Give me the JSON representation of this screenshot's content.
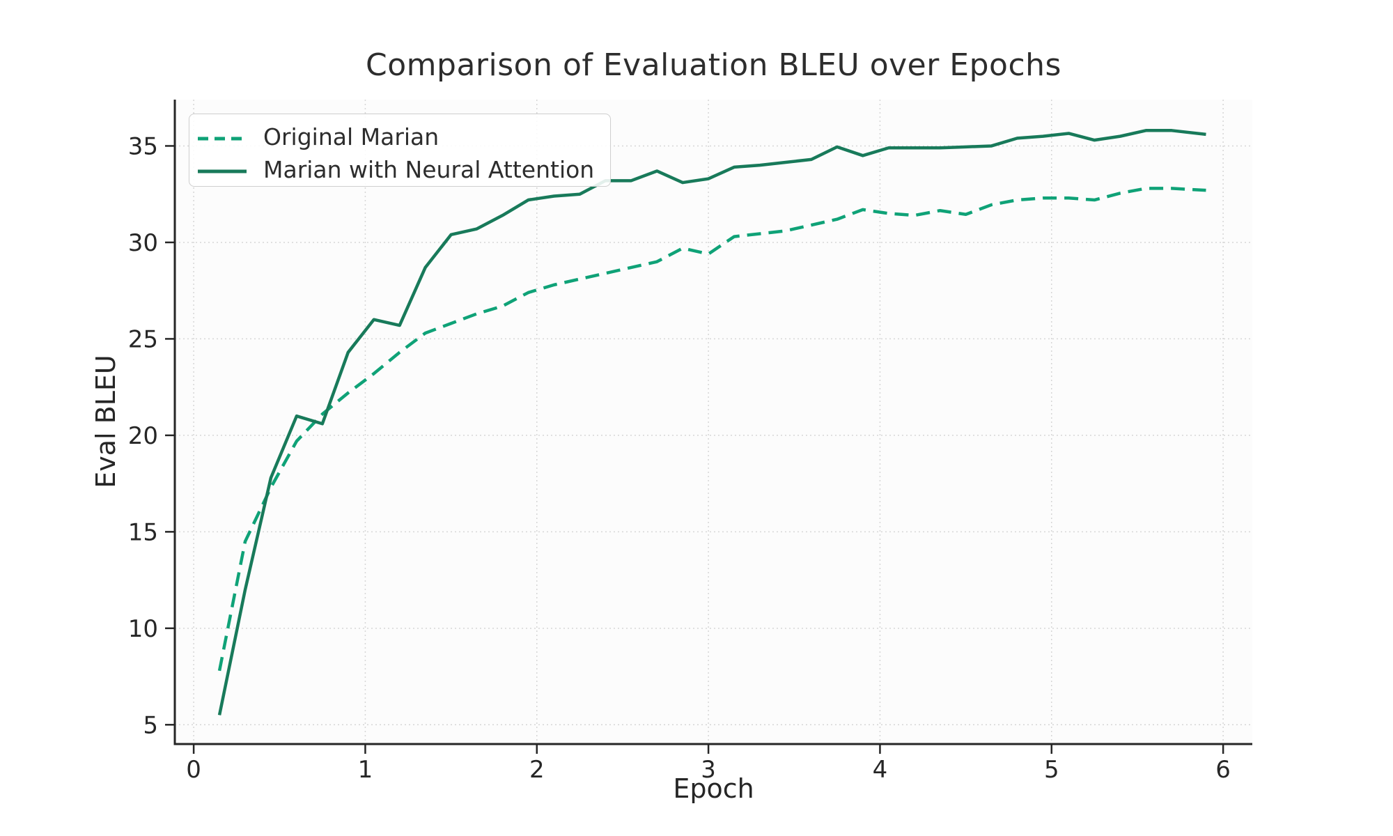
{
  "figure": {
    "background": "#ffffff",
    "plot_background": "#fcfcfc",
    "spine_color": "#262626",
    "grid_color": "#d6d6d6",
    "text_color": "#262626"
  },
  "chart_data": {
    "type": "line",
    "title": "Comparison of Evaluation BLEU over Epochs",
    "xlabel": "Epoch",
    "ylabel": "Eval BLEU",
    "xlim": [
      -0.11,
      6.17
    ],
    "ylim": [
      4.0,
      37.4
    ],
    "x_ticks": [
      0,
      1,
      2,
      3,
      4,
      5,
      6
    ],
    "y_ticks": [
      5,
      10,
      15,
      20,
      25,
      30,
      35
    ],
    "grid": true,
    "legend_position": "upper-left",
    "x": [
      0.15,
      0.3,
      0.45,
      0.6,
      0.75,
      0.9,
      1.05,
      1.2,
      1.35,
      1.5,
      1.65,
      1.8,
      1.95,
      2.1,
      2.25,
      2.4,
      2.55,
      2.7,
      2.85,
      3.0,
      3.15,
      3.3,
      3.45,
      3.6,
      3.75,
      3.9,
      4.05,
      4.2,
      4.35,
      4.5,
      4.65,
      4.8,
      4.95,
      5.1,
      5.25,
      5.4,
      5.55,
      5.7,
      5.9
    ],
    "series": [
      {
        "name": "Original Marian",
        "style": "dashed",
        "color": "#0fa277",
        "line_width": 4.5,
        "dash_pattern": "20 11",
        "values": [
          7.8,
          14.5,
          17.3,
          19.7,
          21.1,
          22.2,
          23.2,
          24.3,
          25.3,
          25.8,
          26.3,
          26.7,
          27.4,
          27.8,
          28.1,
          28.4,
          28.7,
          29.0,
          29.7,
          29.4,
          30.3,
          30.45,
          30.6,
          30.9,
          31.2,
          31.7,
          31.5,
          31.4,
          31.65,
          31.45,
          31.95,
          32.2,
          32.3,
          32.3,
          32.2,
          32.55,
          32.8,
          32.8,
          32.7
        ]
      },
      {
        "name": "Marian with Neural Attention",
        "style": "solid",
        "color": "#187a5a",
        "line_width": 4.5,
        "dash_pattern": "",
        "values": [
          5.5,
          12.0,
          17.8,
          21.0,
          20.6,
          24.3,
          26.0,
          25.7,
          28.7,
          30.4,
          30.7,
          31.4,
          32.2,
          32.4,
          32.5,
          33.2,
          33.2,
          33.7,
          33.1,
          33.3,
          33.9,
          34.0,
          34.15,
          34.3,
          34.95,
          34.5,
          34.9,
          34.9,
          34.9,
          34.95,
          35.0,
          35.4,
          35.5,
          35.65,
          35.3,
          35.5,
          35.8,
          35.8,
          35.6
        ]
      }
    ]
  },
  "legend": {
    "items": [
      {
        "label": "Original Marian"
      },
      {
        "label": "Marian with Neural Attention"
      }
    ]
  }
}
